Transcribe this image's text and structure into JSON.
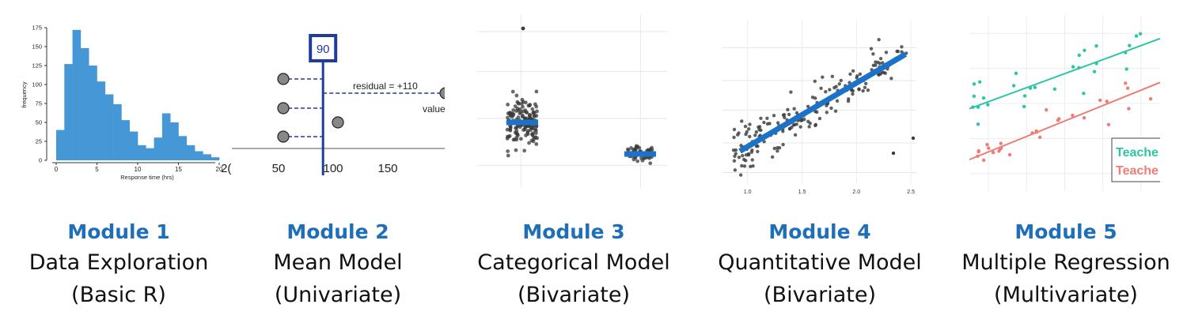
{
  "panels": [
    {
      "module": "Module 1",
      "title": "Data Exploration",
      "subtitle": "(Basic R)"
    },
    {
      "module": "Module 2",
      "title": "Mean Model",
      "subtitle": "(Univariate)"
    },
    {
      "module": "Module 3",
      "title": "Categorical Model",
      "subtitle": "(Bivariate)"
    },
    {
      "module": "Module 4",
      "title": "Quantitative Model",
      "subtitle": "(Bivariate)"
    },
    {
      "module": "Module 5",
      "title": "Multiple Regression",
      "subtitle": "(Multivariate)"
    }
  ],
  "colors": {
    "accent": "#1f6fb8",
    "bar": "#4597d6",
    "navy": "#1f3d99",
    "teal": "#2ec4a6",
    "salmon": "#ee7d76",
    "point": "#3a3a3a"
  },
  "chart_data": [
    {
      "type": "bar",
      "xlabel": "Response time (hrs)",
      "ylabel": "frequency",
      "x_ticks": [
        "0",
        "5",
        "10",
        "15",
        "20"
      ],
      "y_ticks": [
        "0",
        "25",
        "50",
        "75",
        "100",
        "125",
        "150",
        "175"
      ],
      "xlim": [
        0,
        20
      ],
      "ylim": [
        0,
        175
      ],
      "bin_width": 1,
      "bin_starts": [
        0,
        1,
        2,
        3,
        4,
        5,
        6,
        7,
        8,
        9,
        10,
        11,
        12,
        13,
        14,
        15,
        16,
        17,
        18,
        19
      ],
      "values": [
        40,
        127,
        172,
        148,
        125,
        104,
        87,
        74,
        53,
        38,
        20,
        16,
        30,
        62,
        50,
        32,
        20,
        12,
        8,
        4
      ]
    },
    {
      "type": "scatter",
      "annotation": "residual = +110",
      "value_label": "value",
      "mean_label": "90",
      "x_ticks": [
        "50",
        "100",
        "150",
        "2("
      ],
      "mean": 90,
      "points": [
        {
          "x": 50,
          "level": 3
        },
        {
          "x": 50,
          "level": 2
        },
        {
          "x": 50,
          "level": 1
        },
        {
          "x": 100,
          "level": 1.5
        },
        {
          "x": 200,
          "level": 2.6
        }
      ],
      "residual_lines": [
        {
          "from": 50,
          "level": 3
        },
        {
          "from": 50,
          "level": 2
        },
        {
          "from": 50,
          "level": 1
        },
        {
          "from": 200,
          "level": 2.6
        }
      ]
    },
    {
      "type": "scatter",
      "groups": [
        {
          "center": 0.25,
          "mean": 0.62,
          "spread": 0.15,
          "count": 150,
          "outlier": 0.98
        },
        {
          "center": 0.75,
          "mean": 0.21,
          "spread": 0.07,
          "count": 60
        }
      ]
    },
    {
      "type": "scatter",
      "x_ticks": [
        "1.0",
        "1.5",
        "2.0",
        "2.5"
      ],
      "xlim": [
        0.77,
        2.55
      ],
      "ylim": [
        0,
        1
      ],
      "fit": {
        "x0": 0.93,
        "y0": 0.2,
        "x1": 2.45,
        "y1": 0.79
      },
      "count": 200
    },
    {
      "type": "scatter",
      "legend": [
        "Teache",
        "Teache"
      ],
      "series": [
        {
          "color": "teal",
          "line": {
            "x0": 0,
            "y0": 0.47,
            "x1": 1,
            "y1": 0.87
          }
        },
        {
          "color": "salmon",
          "line": {
            "x0": 0,
            "y0": 0.18,
            "x1": 1,
            "y1": 0.62
          }
        }
      ]
    }
  ]
}
